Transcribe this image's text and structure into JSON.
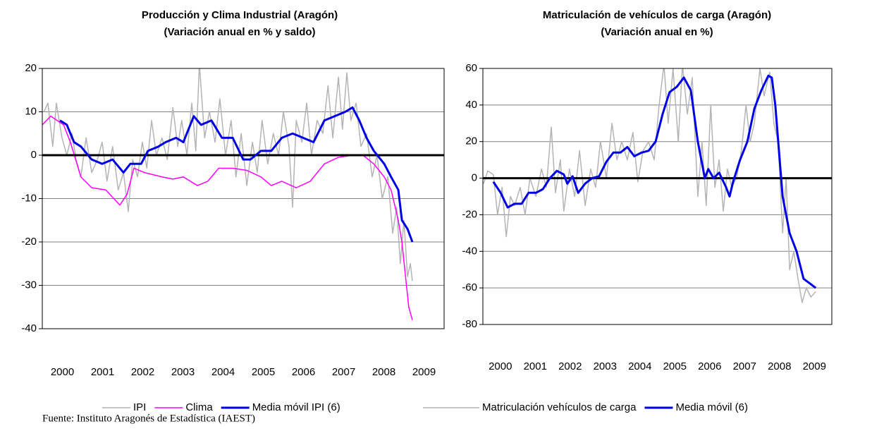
{
  "chart_data": [
    {
      "type": "line",
      "title": "Producción y Clima Industrial (Aragón)",
      "subtitle": "(Variación anual en % y saldo)",
      "xlim": [
        1999.5,
        2009.5
      ],
      "xticks": [
        2000,
        2001,
        2002,
        2003,
        2004,
        2005,
        2006,
        2007,
        2008,
        2009
      ],
      "ylim": [
        -40,
        20
      ],
      "yticks": [
        -40,
        -30,
        -20,
        -10,
        0,
        10,
        20
      ],
      "grid": true,
      "series": [
        {
          "name": "IPI",
          "color": "#b4b4b4",
          "width": 1.5,
          "x": [
            1999.54,
            1999.64,
            1999.76,
            1999.85,
            1999.99,
            2000.11,
            2000.24,
            2000.34,
            2000.46,
            2000.59,
            2000.73,
            2000.87,
            2000.99,
            2001.11,
            2001.25,
            2001.39,
            2001.52,
            2001.64,
            2001.75,
            2001.87,
            2001.99,
            2002.1,
            2002.22,
            2002.34,
            2002.48,
            2002.61,
            2002.75,
            2002.87,
            2002.97,
            2003.1,
            2003.22,
            2003.32,
            2003.41,
            2003.54,
            2003.66,
            2003.8,
            2003.92,
            2004.06,
            2004.2,
            2004.32,
            2004.45,
            2004.59,
            2004.73,
            2004.85,
            2004.97,
            2005.11,
            2005.25,
            2005.38,
            2005.5,
            2005.64,
            2005.73,
            2005.82,
            2005.96,
            2006.08,
            2006.2,
            2006.34,
            2006.48,
            2006.61,
            2006.73,
            2006.87,
            2006.97,
            2007.08,
            2007.18,
            2007.31,
            2007.43,
            2007.57,
            2007.71,
            2007.83,
            2007.96,
            2008.1,
            2008.22,
            2008.32,
            2008.41,
            2008.5,
            2008.59,
            2008.66,
            2008.71
          ],
          "values": [
            10,
            12,
            2,
            12,
            4,
            0,
            5,
            -1,
            -5,
            4,
            -4,
            -1,
            3,
            -6,
            2,
            -8,
            -4,
            -13,
            -1,
            -5,
            3,
            -3,
            8,
            0,
            4,
            -1,
            11,
            2,
            8,
            0,
            12,
            1,
            21,
            4,
            10,
            3,
            13,
            0,
            8,
            -5,
            5,
            -7,
            3,
            -4,
            8,
            -2,
            5,
            0,
            10,
            2,
            -12,
            8,
            3,
            12,
            0,
            8,
            5,
            16,
            4,
            18,
            6,
            19,
            8,
            12,
            2,
            5,
            -5,
            0,
            -10,
            -5,
            -18,
            -12,
            -25,
            -15,
            -28,
            -25,
            -29
          ]
        },
        {
          "name": "Clima",
          "color": "#ff00ff",
          "width": 1.5,
          "x": [
            1999.5,
            1999.71,
            2000.03,
            2000.2,
            2000.46,
            2000.73,
            2001.08,
            2001.43,
            2001.61,
            2001.78,
            2002.04,
            2002.48,
            2002.75,
            2003.01,
            2003.36,
            2003.62,
            2003.89,
            2004.24,
            2004.59,
            2004.94,
            2005.2,
            2005.46,
            2005.82,
            2006.17,
            2006.52,
            2006.87,
            2007.22,
            2007.48,
            2007.75,
            2008.01,
            2008.18,
            2008.36,
            2008.45,
            2008.54,
            2008.62,
            2008.71
          ],
          "values": [
            7,
            9,
            7,
            3,
            -5,
            -7.5,
            -8,
            -11.5,
            -9,
            -3,
            -4,
            -5,
            -5.5,
            -5,
            -7,
            -6,
            -3,
            -3,
            -3.5,
            -5,
            -7,
            -6,
            -7.5,
            -6,
            -2,
            -0.5,
            0,
            0,
            -2,
            -5,
            -8,
            -15,
            -20,
            -28,
            -35,
            -38
          ]
        },
        {
          "name": "Media móvil IPI (6)",
          "color": "#0000e6",
          "width": 3,
          "x": [
            1999.94,
            2000.11,
            2000.29,
            2000.46,
            2000.73,
            2000.99,
            2001.25,
            2001.52,
            2001.69,
            2001.96,
            2002.13,
            2002.39,
            2002.57,
            2002.83,
            2003.01,
            2003.27,
            2003.45,
            2003.71,
            2003.97,
            2004.24,
            2004.5,
            2004.68,
            2004.94,
            2005.2,
            2005.46,
            2005.73,
            2005.99,
            2006.25,
            2006.52,
            2006.78,
            2007.04,
            2007.22,
            2007.39,
            2007.57,
            2007.75,
            2008.01,
            2008.18,
            2008.36,
            2008.45,
            2008.59,
            2008.71
          ],
          "values": [
            8,
            7,
            3,
            2,
            -1,
            -2,
            -1,
            -4,
            -2,
            -2,
            1,
            2,
            3,
            4,
            3,
            9,
            7,
            8,
            4,
            4,
            -1,
            -1,
            1,
            1,
            4,
            5,
            4,
            3,
            8,
            9,
            10,
            11,
            8,
            4,
            1,
            -2,
            -5,
            -8,
            -15,
            -17,
            -20
          ]
        }
      ]
    },
    {
      "type": "line",
      "title": "Matriculación de vehículos de carga (Aragón)",
      "subtitle": "(Variación anual en %)",
      "xlim": [
        1999.5,
        2009.5
      ],
      "xticks": [
        2000,
        2001,
        2002,
        2003,
        2004,
        2005,
        2006,
        2007,
        2008,
        2009
      ],
      "ylim": [
        -80,
        60
      ],
      "yticks": [
        -80,
        -60,
        -40,
        -20,
        0,
        20,
        40,
        60
      ],
      "grid": true,
      "series": [
        {
          "name": "Matriculación vehículos de carga",
          "color": "#b4b4b4",
          "width": 1.5,
          "x": [
            1999.52,
            1999.64,
            1999.8,
            1999.92,
            2000.05,
            2000.17,
            2000.29,
            2000.41,
            2000.57,
            2000.71,
            2000.85,
            2001.02,
            2001.18,
            2001.32,
            2001.46,
            2001.58,
            2001.72,
            2001.82,
            2001.98,
            2002.13,
            2002.27,
            2002.43,
            2002.59,
            2002.73,
            2002.87,
            2003.04,
            2003.2,
            2003.34,
            2003.48,
            2003.64,
            2003.8,
            2003.94,
            2004.09,
            2004.25,
            2004.41,
            2004.55,
            2004.69,
            2004.81,
            2004.95,
            2005.1,
            2005.22,
            2005.36,
            2005.5,
            2005.66,
            2005.78,
            2005.9,
            2006.03,
            2006.15,
            2006.27,
            2006.39,
            2006.51,
            2006.63,
            2006.77,
            2006.91,
            2007.04,
            2007.16,
            2007.28,
            2007.44,
            2007.56,
            2007.72,
            2007.84,
            2007.96,
            2008.09,
            2008.19,
            2008.29,
            2008.41,
            2008.53,
            2008.65,
            2008.77,
            2008.9,
            2009.04
          ],
          "values": [
            -3,
            4,
            2,
            -20,
            -5,
            -32,
            -10,
            -15,
            -5,
            -20,
            0,
            -10,
            5,
            -5,
            28,
            -8,
            10,
            -18,
            5,
            -10,
            15,
            -15,
            5,
            -5,
            20,
            0,
            30,
            10,
            20,
            10,
            25,
            -2,
            15,
            20,
            10,
            40,
            62,
            30,
            60,
            20,
            62,
            35,
            55,
            -10,
            20,
            -15,
            40,
            -5,
            10,
            -18,
            5,
            -5,
            0,
            15,
            40,
            20,
            30,
            60,
            45,
            58,
            30,
            20,
            -30,
            0,
            -50,
            -40,
            -55,
            -68,
            -60,
            -65,
            -62
          ]
        },
        {
          "name": "Media móvil (6)",
          "color": "#0000e6",
          "width": 3,
          "x": [
            1999.8,
            2000.01,
            2000.21,
            2000.41,
            2000.61,
            2000.81,
            2001.02,
            2001.22,
            2001.42,
            2001.62,
            2001.82,
            2001.92,
            2002.07,
            2002.23,
            2002.43,
            2002.63,
            2002.83,
            2003.04,
            2003.24,
            2003.44,
            2003.64,
            2003.84,
            2004.05,
            2004.25,
            2004.45,
            2004.65,
            2004.85,
            2005.06,
            2005.26,
            2005.46,
            2005.66,
            2005.86,
            2005.96,
            2006.11,
            2006.27,
            2006.47,
            2006.57,
            2006.67,
            2006.87,
            2007.08,
            2007.28,
            2007.48,
            2007.68,
            2007.78,
            2007.88,
            2008.09,
            2008.29,
            2008.49,
            2008.69,
            2008.9,
            2009.04
          ],
          "values": [
            -2,
            -8,
            -16,
            -14,
            -14,
            -8,
            -8,
            -6,
            0,
            4,
            2,
            -3,
            1,
            -8,
            -3,
            0,
            1,
            9,
            14,
            14,
            17,
            12,
            14,
            15,
            20,
            35,
            47,
            50,
            55,
            48,
            20,
            0,
            5,
            0,
            3,
            -5,
            -10,
            -2,
            10,
            20,
            38,
            48,
            56,
            55,
            40,
            -10,
            -30,
            -40,
            -55,
            -58,
            -60
          ]
        }
      ]
    }
  ],
  "source": "Fuente: Instituto Aragonés de Estadística (IAEST)"
}
